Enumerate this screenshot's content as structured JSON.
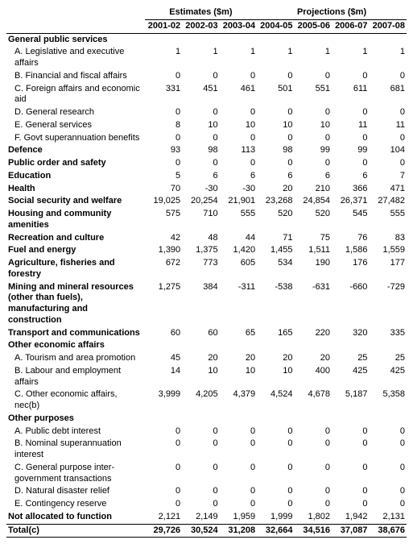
{
  "headers": {
    "group_estimates": "Estimates ($m)",
    "group_projections": "Projections ($m)",
    "years": [
      "2001-02",
      "2002-03",
      "2003-04",
      "2004-05",
      "2005-06",
      "2006-07",
      "2007-08"
    ]
  },
  "rows": [
    {
      "label": "General public services",
      "bold": true,
      "header": true
    },
    {
      "label": "A. Legislative and executive affairs",
      "sub": true,
      "vals": [
        "1",
        "1",
        "1",
        "1",
        "1",
        "1",
        "1"
      ]
    },
    {
      "label": "B. Financial and fiscal affairs",
      "sub": true,
      "vals": [
        "0",
        "0",
        "0",
        "0",
        "0",
        "0",
        "0"
      ]
    },
    {
      "label": "C. Foreign affairs and economic aid",
      "sub": true,
      "vals": [
        "331",
        "451",
        "461",
        "501",
        "551",
        "611",
        "681"
      ]
    },
    {
      "label": "D. General research",
      "sub": true,
      "vals": [
        "0",
        "0",
        "0",
        "0",
        "0",
        "0",
        "0"
      ]
    },
    {
      "label": "E. General services",
      "sub": true,
      "vals": [
        "8",
        "10",
        "10",
        "10",
        "10",
        "11",
        "11"
      ]
    },
    {
      "label": "F. Govt superannuation benefits",
      "sub": true,
      "vals": [
        "0",
        "0",
        "0",
        "0",
        "0",
        "0",
        "0"
      ]
    },
    {
      "label": "Defence",
      "bold": true,
      "vals": [
        "93",
        "98",
        "113",
        "98",
        "99",
        "99",
        "104"
      ]
    },
    {
      "label": "Public order and safety",
      "bold": true,
      "vals": [
        "0",
        "0",
        "0",
        "0",
        "0",
        "0",
        "0"
      ]
    },
    {
      "label": "Education",
      "bold": true,
      "vals": [
        "5",
        "6",
        "6",
        "6",
        "6",
        "6",
        "7"
      ]
    },
    {
      "label": "Health",
      "bold": true,
      "vals": [
        "70",
        "-30",
        "-30",
        "20",
        "210",
        "366",
        "471"
      ]
    },
    {
      "label": "Social security and welfare",
      "bold": true,
      "vals": [
        "19,025",
        "20,254",
        "21,901",
        "23,268",
        "24,854",
        "26,371",
        "27,482"
      ]
    },
    {
      "label": "Housing and community amenities",
      "bold": true,
      "vals": [
        "575",
        "710",
        "555",
        "520",
        "520",
        "545",
        "555"
      ]
    },
    {
      "label": "Recreation and culture",
      "bold": true,
      "vals": [
        "42",
        "48",
        "44",
        "71",
        "75",
        "76",
        "83"
      ]
    },
    {
      "label": "Fuel and energy",
      "bold": true,
      "vals": [
        "1,390",
        "1,375",
        "1,420",
        "1,455",
        "1,511",
        "1,586",
        "1,559"
      ]
    },
    {
      "label": "Agriculture, fisheries and forestry",
      "bold": true,
      "vals": [
        "672",
        "773",
        "605",
        "534",
        "190",
        "176",
        "177"
      ]
    },
    {
      "label": "Mining and mineral resources (other than fuels), manufacturing and construction",
      "bold": true,
      "vals": [
        "1,275",
        "384",
        "-311",
        "-538",
        "-631",
        "-660",
        "-729"
      ]
    },
    {
      "label": "Transport and communications",
      "bold": true,
      "vals": [
        "60",
        "60",
        "65",
        "165",
        "220",
        "320",
        "335"
      ]
    },
    {
      "label": "Other economic affairs",
      "bold": true,
      "header": true
    },
    {
      "label": "A. Tourism and area promotion",
      "sub": true,
      "vals": [
        "45",
        "20",
        "20",
        "20",
        "20",
        "25",
        "25"
      ]
    },
    {
      "label": "B. Labour and employment affairs",
      "sub": true,
      "vals": [
        "14",
        "10",
        "10",
        "10",
        "400",
        "425",
        "425"
      ]
    },
    {
      "label": "C. Other economic affairs, nec(b)",
      "sub": true,
      "vals": [
        "3,999",
        "4,205",
        "4,379",
        "4,524",
        "4,678",
        "5,187",
        "5,358"
      ]
    },
    {
      "label": "Other purposes",
      "bold": true,
      "header": true
    },
    {
      "label": "A. Public debt interest",
      "sub": true,
      "vals": [
        "0",
        "0",
        "0",
        "0",
        "0",
        "0",
        "0"
      ]
    },
    {
      "label": "B. Nominal superannuation interest",
      "sub": true,
      "vals": [
        "0",
        "0",
        "0",
        "0",
        "0",
        "0",
        "0"
      ]
    },
    {
      "label": "C. General purpose inter-government transactions",
      "sub": true,
      "vals": [
        "0",
        "0",
        "0",
        "0",
        "0",
        "0",
        "0"
      ]
    },
    {
      "label": "D. Natural disaster relief",
      "sub": true,
      "vals": [
        "0",
        "0",
        "0",
        "0",
        "0",
        "0",
        "0"
      ]
    },
    {
      "label": "E. Contingency reserve",
      "sub": true,
      "vals": [
        "0",
        "0",
        "0",
        "0",
        "0",
        "0",
        "0"
      ]
    },
    {
      "label": "Not allocated to function",
      "bold": true,
      "vals": [
        "2,121",
        "2,149",
        "1,959",
        "1,999",
        "1,802",
        "1,942",
        "2,131"
      ]
    }
  ],
  "total": {
    "label": "Total(c)",
    "vals": [
      "29,726",
      "30,524",
      "31,208",
      "32,664",
      "34,516",
      "37,087",
      "38,676"
    ]
  }
}
